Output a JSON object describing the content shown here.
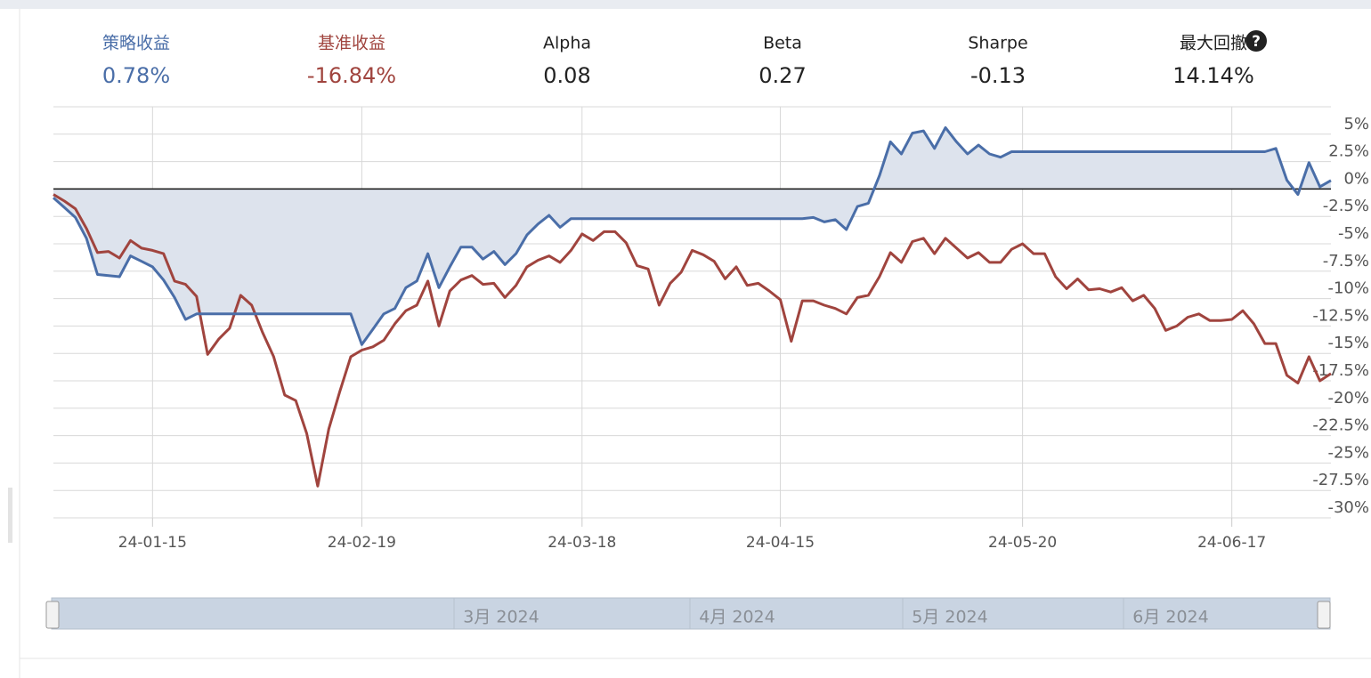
{
  "stats": [
    {
      "label": "策略收益",
      "value": "0.78%"
    },
    {
      "label": "基准收益",
      "value": "-16.84%"
    },
    {
      "label": "Alpha",
      "value": "0.08"
    },
    {
      "label": "Beta",
      "value": "0.27"
    },
    {
      "label": "Sharpe",
      "value": "-0.13"
    },
    {
      "label": "最大回撤",
      "value": "14.14%"
    }
  ],
  "chart_data": {
    "type": "line",
    "categories": [
      null,
      null,
      null,
      null,
      null,
      null,
      null,
      null,
      null,
      "24-01-15",
      null,
      null,
      null,
      null,
      null,
      null,
      null,
      null,
      null,
      null,
      null,
      null,
      null,
      null,
      null,
      null,
      null,
      null,
      "24-02-19",
      null,
      null,
      null,
      null,
      null,
      null,
      null,
      null,
      null,
      null,
      null,
      null,
      null,
      null,
      null,
      null,
      null,
      null,
      null,
      "24-03-18",
      null,
      null,
      null,
      null,
      null,
      null,
      null,
      null,
      null,
      null,
      null,
      null,
      null,
      null,
      null,
      null,
      null,
      "24-04-15",
      null,
      null,
      null,
      null,
      null,
      null,
      null,
      null,
      null,
      null,
      null,
      null,
      null,
      null,
      null,
      null,
      null,
      null,
      null,
      null,
      null,
      "24-05-20",
      null,
      null,
      null,
      null,
      null,
      null,
      null,
      null,
      null,
      null,
      null,
      null,
      null,
      null,
      null,
      null,
      null,
      null,
      "24-06-17",
      null,
      null,
      null,
      null,
      null,
      null,
      null,
      null,
      null
    ],
    "series": [
      {
        "name": "策略收益",
        "color": "#4a6ea8",
        "fill": "#dde3ed",
        "values": [
          -0.8,
          -1.7,
          -2.6,
          -4.5,
          -7.8,
          -7.9,
          -8.0,
          -6.1,
          -6.6,
          -7.1,
          -8.3,
          -9.9,
          -11.9,
          -11.4,
          -11.4,
          -11.4,
          -11.4,
          -11.4,
          -11.4,
          -11.4,
          -11.4,
          -11.4,
          -11.4,
          -11.4,
          -11.4,
          -11.4,
          -11.4,
          -11.4,
          -14.2,
          -12.8,
          -11.4,
          -10.9,
          -9.0,
          -8.4,
          -5.9,
          -9.0,
          -7.1,
          -5.3,
          -5.3,
          -6.4,
          -5.7,
          -6.9,
          -5.9,
          -4.2,
          -3.2,
          -2.4,
          -3.5,
          -2.7,
          -2.7,
          -2.7,
          -2.7,
          -2.7,
          -2.7,
          -2.7,
          -2.7,
          -2.7,
          -2.7,
          -2.7,
          -2.7,
          -2.7,
          -2.7,
          -2.7,
          -2.7,
          -2.7,
          -2.7,
          -2.7,
          -2.7,
          -2.7,
          -2.7,
          -2.6,
          -3.0,
          -2.8,
          -3.7,
          -1.6,
          -1.3,
          1.2,
          4.3,
          3.2,
          5.1,
          5.3,
          3.7,
          5.6,
          4.3,
          3.2,
          4.0,
          3.2,
          2.9,
          3.4,
          3.4,
          3.4,
          3.4,
          3.4,
          3.4,
          3.4,
          3.4,
          3.4,
          3.4,
          3.4,
          3.4,
          3.4,
          3.4,
          3.4,
          3.4,
          3.4,
          3.4,
          3.4,
          3.4,
          3.4,
          3.4,
          3.4,
          3.4,
          3.7,
          0.8,
          -0.5,
          2.4,
          0.2,
          0.78
        ]
      },
      {
        "name": "基准收益",
        "color": "#a0443e",
        "values": [
          -0.5,
          -1.1,
          -1.8,
          -3.6,
          -5.8,
          -5.7,
          -6.3,
          -4.7,
          -5.4,
          -5.6,
          -5.9,
          -8.4,
          -8.7,
          -9.8,
          -15.1,
          -13.7,
          -12.7,
          -9.7,
          -10.6,
          -13.1,
          -15.3,
          -18.8,
          -19.3,
          -22.3,
          -27.1,
          -21.9,
          -18.5,
          -15.3,
          -14.7,
          -14.4,
          -13.8,
          -12.3,
          -11.1,
          -10.6,
          -8.4,
          -12.5,
          -9.3,
          -8.3,
          -7.9,
          -8.7,
          -8.6,
          -9.9,
          -8.8,
          -7.1,
          -6.5,
          -6.1,
          -6.7,
          -5.6,
          -4.1,
          -4.7,
          -3.9,
          -3.9,
          -4.9,
          -7.0,
          -7.3,
          -10.6,
          -8.6,
          -7.6,
          -5.6,
          -6.0,
          -6.6,
          -8.2,
          -7.1,
          -8.8,
          -8.6,
          -9.3,
          -10.1,
          -13.9,
          -10.2,
          -10.2,
          -10.6,
          -10.9,
          -11.4,
          -9.9,
          -9.7,
          -8.0,
          -5.8,
          -6.7,
          -4.8,
          -4.5,
          -5.9,
          -4.5,
          -5.4,
          -6.3,
          -5.8,
          -6.7,
          -6.7,
          -5.5,
          -5.0,
          -5.9,
          -5.9,
          -8.0,
          -9.1,
          -8.2,
          -9.2,
          -9.1,
          -9.4,
          -9.0,
          -10.2,
          -9.7,
          -10.9,
          -12.9,
          -12.5,
          -11.7,
          -11.4,
          -12.0,
          -12.0,
          -11.9,
          -11.1,
          -12.3,
          -14.1,
          -14.1,
          -17.0,
          -17.7,
          -15.3,
          -17.5,
          -16.84
        ]
      }
    ],
    "ylim": [
      -30,
      7.5
    ],
    "yticks": [
      {
        "value": 5,
        "label": "5%"
      },
      {
        "value": 2.5,
        "label": "2.5%"
      },
      {
        "value": 0,
        "label": "0%"
      },
      {
        "value": -2.5,
        "label": "-2.5%"
      },
      {
        "value": -5,
        "label": "-5%"
      },
      {
        "value": -7.5,
        "label": "-7.5%"
      },
      {
        "value": -10,
        "label": "-10%"
      },
      {
        "value": -12.5,
        "label": "-12.5%"
      },
      {
        "value": -15,
        "label": "-15%"
      },
      {
        "value": -17.5,
        "label": "-17.5%"
      },
      {
        "value": -20,
        "label": "-20%"
      },
      {
        "value": -22.5,
        "label": "-22.5%"
      },
      {
        "value": -25,
        "label": "-25%"
      },
      {
        "value": -27.5,
        "label": "-27.5%"
      },
      {
        "value": -30,
        "label": "-30%"
      }
    ],
    "grid": true
  },
  "navigator": {
    "labels": [
      "3月 2024",
      "4月 2024",
      "5月 2024",
      "6月 2024"
    ]
  }
}
